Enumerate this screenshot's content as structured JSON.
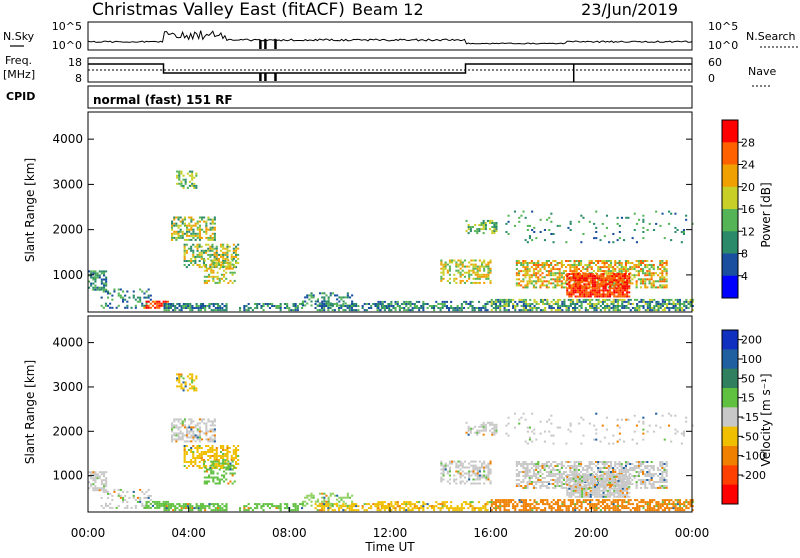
{
  "header": {
    "title": "Christmas Valley East (fitACF)",
    "beam": "Beam 12",
    "date": "23/Jun/2019"
  },
  "status_panels": {
    "nsky_label": "N.Sky",
    "nsky_ticks": [
      "10^5",
      "10^0"
    ],
    "nsearch_label": "N.Search",
    "freq_label_1": "Freq.",
    "freq_label_2": "[MHz]",
    "freq_ticks": [
      "18",
      "8"
    ],
    "nave_ticks": [
      "60",
      "0"
    ],
    "nave_label": "Nave",
    "cpid_label": "CPID",
    "cpid_text": "normal (fast) 151 RF"
  },
  "chart_data": [
    {
      "type": "heatmap",
      "title": "Power",
      "ylabel": "Slant Range [km]",
      "xlabel": "Time UT",
      "x_ticks": [
        "00:00",
        "04:00",
        "08:00",
        "12:00",
        "16:00",
        "20:00",
        "00:00"
      ],
      "xlim": [
        0,
        24
      ],
      "y_ticks": [
        1000,
        2000,
        3000,
        4000
      ],
      "ylim": [
        180,
        4600
      ],
      "colorbar_label": "Power [dB]",
      "colorbar_ticks": [
        "4",
        "8",
        "12",
        "16",
        "20",
        "24",
        "28"
      ],
      "colorbar_colors": [
        "#0000ff",
        "#1a4fa0",
        "#2b8a6a",
        "#55b455",
        "#c8d028",
        "#f0a000",
        "#ff6000",
        "#ff0000"
      ]
    },
    {
      "type": "heatmap",
      "title": "Velocity",
      "ylabel": "Slant Range [km]",
      "xlabel": "Time UT",
      "x_ticks": [
        "00:00",
        "04:00",
        "08:00",
        "12:00",
        "16:00",
        "20:00",
        "00:00"
      ],
      "xlim": [
        0,
        24
      ],
      "y_ticks": [
        1000,
        2000,
        3000,
        4000
      ],
      "ylim": [
        180,
        4600
      ],
      "colorbar_label": "Velocity [m s⁻¹]",
      "colorbar_ticks": [
        "200",
        "100",
        "50",
        "15",
        "-15",
        "-50",
        "-100",
        "-200"
      ],
      "colorbar_colors": [
        "#1030c0",
        "#2060a0",
        "#308060",
        "#60c040",
        "#c8c8c8",
        "#f0c000",
        "#f08000",
        "#ff4000",
        "#ff0000"
      ]
    }
  ]
}
